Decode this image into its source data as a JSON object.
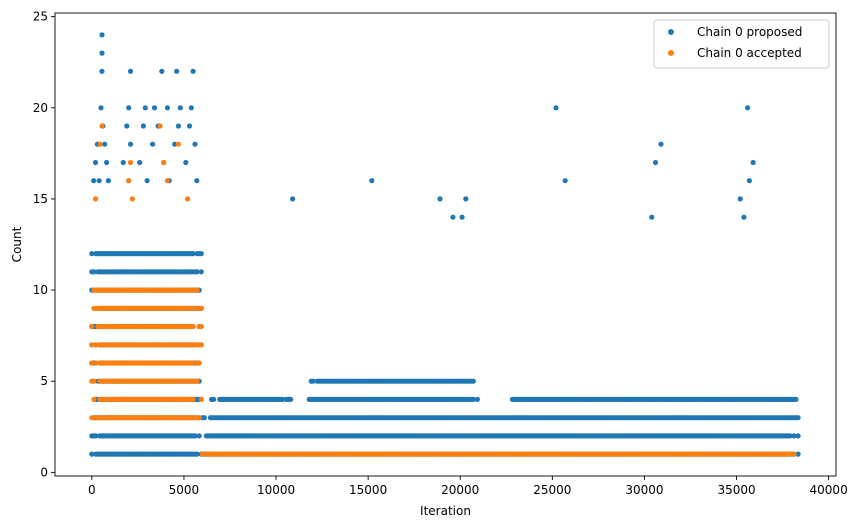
{
  "chart_data": {
    "type": "scatter",
    "title": "",
    "xlabel": "Iteration",
    "ylabel": "Count",
    "xlim": [
      -2000,
      40400
    ],
    "ylim": [
      -0.2,
      25.2
    ],
    "x_ticks": [
      0,
      5000,
      10000,
      15000,
      20000,
      25000,
      30000,
      35000,
      40000
    ],
    "x_tick_labels": [
      "0",
      "5000",
      "10000",
      "15000",
      "20000",
      "25000",
      "30000",
      "35000",
      "40000"
    ],
    "y_ticks": [
      0,
      5,
      10,
      15,
      20,
      25
    ],
    "y_tick_labels": [
      "0",
      "5",
      "10",
      "15",
      "20",
      "25"
    ],
    "grid": false,
    "legend_position": "top-right",
    "total_iterations": 38400,
    "series": [
      {
        "name": "Chain 0 proposed",
        "color": "#1f77b4",
        "dense_bands": [
          {
            "x_start": 0,
            "x_end": 6000,
            "y_values": [
              1,
              2,
              3,
              4,
              5,
              6,
              7,
              8,
              9,
              10,
              11,
              12
            ]
          },
          {
            "x_start": 6000,
            "x_end": 38400,
            "y_values": [
              1,
              2,
              3
            ]
          },
          {
            "x_start": 6500,
            "x_end": 10800,
            "y_values": [
              4
            ]
          },
          {
            "x_start": 11800,
            "x_end": 21000,
            "y_values": [
              4,
              5
            ]
          },
          {
            "x_start": 22500,
            "x_end": 38300,
            "y_values": [
              4
            ]
          }
        ],
        "points": [
          {
            "x": 550,
            "y": 24
          },
          {
            "x": 550,
            "y": 23
          },
          {
            "x": 550,
            "y": 22
          },
          {
            "x": 2100,
            "y": 22
          },
          {
            "x": 3800,
            "y": 22
          },
          {
            "x": 4600,
            "y": 22
          },
          {
            "x": 5500,
            "y": 22
          },
          {
            "x": 500,
            "y": 20
          },
          {
            "x": 2000,
            "y": 20
          },
          {
            "x": 2900,
            "y": 20
          },
          {
            "x": 3400,
            "y": 20
          },
          {
            "x": 4100,
            "y": 20
          },
          {
            "x": 4800,
            "y": 20
          },
          {
            "x": 5400,
            "y": 20
          },
          {
            "x": 600,
            "y": 19
          },
          {
            "x": 1900,
            "y": 19
          },
          {
            "x": 2800,
            "y": 19
          },
          {
            "x": 3600,
            "y": 19
          },
          {
            "x": 4700,
            "y": 19
          },
          {
            "x": 5300,
            "y": 19
          },
          {
            "x": 300,
            "y": 18
          },
          {
            "x": 700,
            "y": 18
          },
          {
            "x": 2100,
            "y": 18
          },
          {
            "x": 3300,
            "y": 18
          },
          {
            "x": 4500,
            "y": 18
          },
          {
            "x": 5600,
            "y": 18
          },
          {
            "x": 200,
            "y": 17
          },
          {
            "x": 800,
            "y": 17
          },
          {
            "x": 1700,
            "y": 17
          },
          {
            "x": 2600,
            "y": 17
          },
          {
            "x": 3900,
            "y": 17
          },
          {
            "x": 5100,
            "y": 17
          },
          {
            "x": 100,
            "y": 16
          },
          {
            "x": 400,
            "y": 16
          },
          {
            "x": 900,
            "y": 16
          },
          {
            "x": 2000,
            "y": 16
          },
          {
            "x": 3000,
            "y": 16
          },
          {
            "x": 4200,
            "y": 16
          },
          {
            "x": 5700,
            "y": 16
          },
          {
            "x": 10900,
            "y": 15
          },
          {
            "x": 15200,
            "y": 16
          },
          {
            "x": 25200,
            "y": 20
          },
          {
            "x": 25700,
            "y": 16
          },
          {
            "x": 35600,
            "y": 20
          },
          {
            "x": 35900,
            "y": 17
          },
          {
            "x": 35700,
            "y": 16
          },
          {
            "x": 35400,
            "y": 14
          },
          {
            "x": 35200,
            "y": 15
          },
          {
            "x": 30900,
            "y": 18
          },
          {
            "x": 30600,
            "y": 17
          },
          {
            "x": 30400,
            "y": 14
          },
          {
            "x": 20300,
            "y": 15
          },
          {
            "x": 20100,
            "y": 14
          },
          {
            "x": 18900,
            "y": 15
          },
          {
            "x": 19600,
            "y": 14
          }
        ]
      },
      {
        "name": "Chain 0 accepted",
        "color": "#ff7f0e",
        "dense_bands": [
          {
            "x_start": 0,
            "x_end": 6000,
            "y_values": [
              3,
              4,
              5,
              6,
              7,
              8,
              9,
              10
            ]
          },
          {
            "x_start": 6000,
            "x_end": 38400,
            "y_values": [
              1
            ]
          }
        ],
        "points": [
          {
            "x": 550,
            "y": 19
          },
          {
            "x": 450,
            "y": 18
          },
          {
            "x": 3700,
            "y": 19
          },
          {
            "x": 4700,
            "y": 18
          },
          {
            "x": 2100,
            "y": 17
          },
          {
            "x": 2000,
            "y": 16
          },
          {
            "x": 3900,
            "y": 17
          },
          {
            "x": 4100,
            "y": 16
          },
          {
            "x": 200,
            "y": 15
          },
          {
            "x": 2200,
            "y": 15
          },
          {
            "x": 5200,
            "y": 15
          }
        ]
      }
    ]
  }
}
